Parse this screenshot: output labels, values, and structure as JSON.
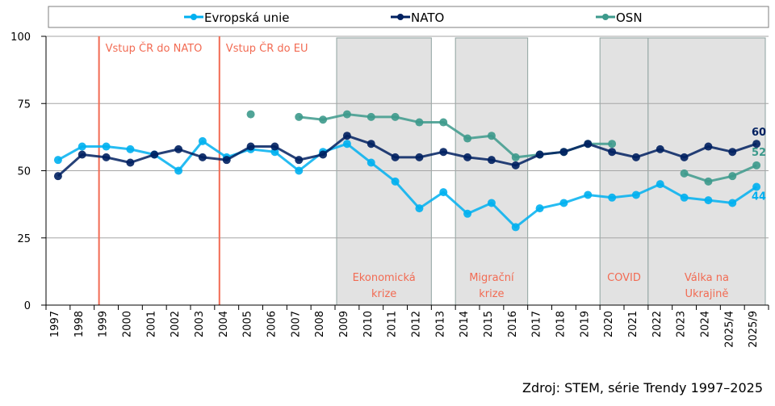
{
  "chart_data": {
    "type": "line",
    "title": "",
    "xlabel": "",
    "ylabel": "",
    "ylim": [
      0,
      100
    ],
    "yticks": [
      0,
      25,
      50,
      75,
      100
    ],
    "grid": true,
    "legend_position": "top",
    "categories": [
      "1997",
      "1998",
      "1999",
      "2000",
      "2001",
      "2002",
      "2003",
      "2004",
      "2005",
      "2006",
      "2007",
      "2008",
      "2009",
      "2010",
      "2011",
      "2012",
      "2013",
      "2014",
      "2015",
      "2016",
      "2017",
      "2018",
      "2019",
      "2020",
      "2021",
      "2022",
      "2023",
      "2024",
      "2025/4",
      "2025/9"
    ],
    "series": [
      {
        "name": "Evropská unie",
        "color": "#00B0F0",
        "values": [
          54,
          59,
          59,
          58,
          56,
          50,
          61,
          55,
          58,
          57,
          50,
          57,
          60,
          53,
          46,
          36,
          42,
          34,
          38,
          29,
          36,
          38,
          41,
          40,
          41,
          45,
          40,
          39,
          38,
          44
        ],
        "end_label": "44"
      },
      {
        "name": "NATO",
        "color": "#002060",
        "values": [
          48,
          56,
          55,
          53,
          56,
          58,
          55,
          54,
          59,
          59,
          54,
          56,
          63,
          60,
          55,
          55,
          57,
          55,
          54,
          52,
          56,
          57,
          60,
          57,
          55,
          58,
          55,
          59,
          57,
          60
        ],
        "end_label": "60"
      },
      {
        "name": "OSN",
        "color": "#3D9A8C",
        "values": [
          null,
          null,
          null,
          null,
          null,
          null,
          null,
          null,
          71,
          null,
          70,
          69,
          71,
          70,
          70,
          68,
          68,
          62,
          63,
          55,
          56,
          57,
          60,
          60,
          null,
          null,
          49,
          46,
          48,
          52
        ],
        "end_label": "52"
      }
    ],
    "events": [
      {
        "type": "line",
        "label": "Vstup ČR do NATO",
        "at": 1999.2
      },
      {
        "type": "line",
        "label": "Vstup ČR do EU",
        "at": 2004.2
      }
    ],
    "periods": [
      {
        "label_lines": [
          "Ekonomická",
          "krize"
        ],
        "from": "2009",
        "to": "2012"
      },
      {
        "label_lines": [
          "Migrační",
          "krize"
        ],
        "from": "2014",
        "to": "2016"
      },
      {
        "label_lines": [
          "COVID"
        ],
        "from": "2020",
        "to": "2021"
      },
      {
        "label_lines": [
          "Válka na",
          "Ukrajině"
        ],
        "from": "2022",
        "to": "2025/9"
      }
    ],
    "event_color": "#F26B53",
    "period_color": "#E2E2E2"
  },
  "source": "Zdroj: STEM, série Trendy 1997–2025"
}
